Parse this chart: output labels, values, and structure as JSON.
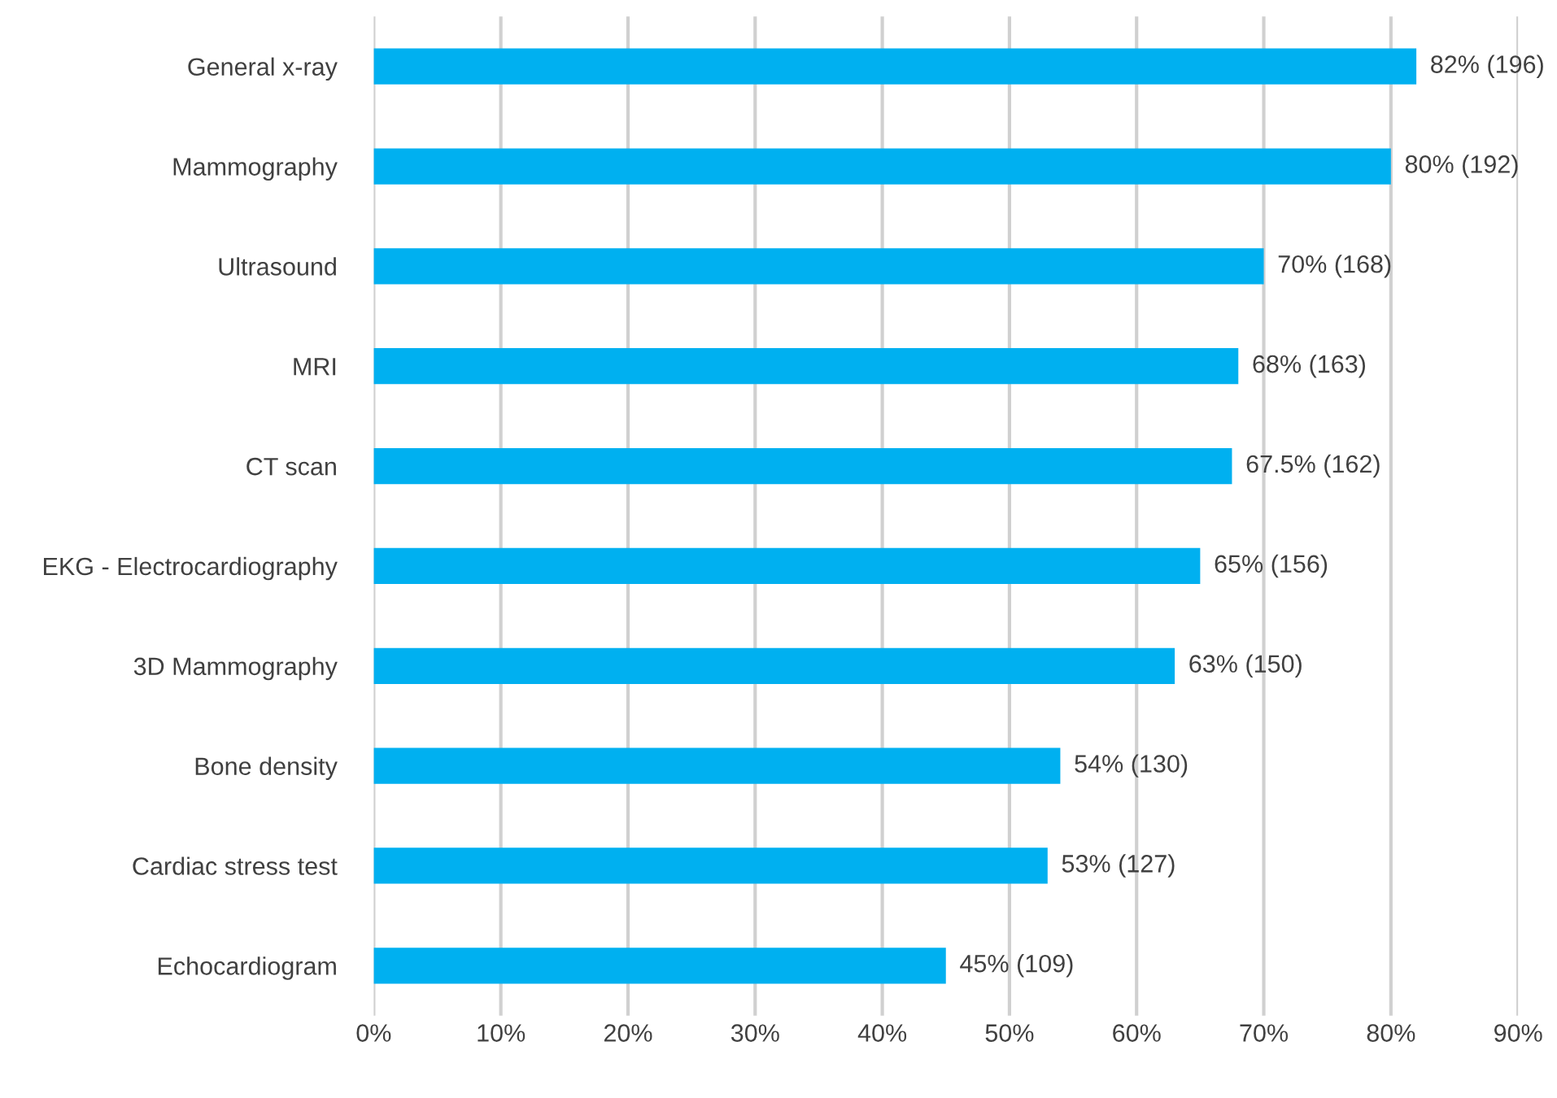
{
  "chart_data": {
    "type": "bar",
    "orientation": "horizontal",
    "categories": [
      "General x-ray",
      "Mammography",
      "Ultrasound",
      "MRI",
      "CT scan",
      "EKG - Electrocardiography",
      "3D Mammography",
      "Bone density",
      "Cardiac stress test",
      "Echocardiogram"
    ],
    "values": [
      82,
      80,
      70,
      68,
      67.5,
      65,
      63,
      54,
      53,
      45
    ],
    "value_labels": [
      "82% (196)",
      "80% (192)",
      "70% (168)",
      "68% (163)",
      "67.5% (162)",
      "65% (156)",
      "63% (150)",
      "54% (130)",
      "53% (127)",
      "45% (109)"
    ],
    "color": "#00b0f0",
    "xlim": [
      0,
      90
    ],
    "xticks": [
      {
        "value": 0,
        "label": "0%"
      },
      {
        "value": 10,
        "label": "10%"
      },
      {
        "value": 20,
        "label": "20%"
      },
      {
        "value": 30,
        "label": "30%"
      },
      {
        "value": 40,
        "label": "40%"
      },
      {
        "value": 50,
        "label": "50%"
      },
      {
        "value": 60,
        "label": "60%"
      },
      {
        "value": 70,
        "label": "70%"
      },
      {
        "value": 80,
        "label": "80%"
      },
      {
        "value": 90,
        "label": "90%"
      }
    ],
    "grid": "x",
    "legend": false
  }
}
